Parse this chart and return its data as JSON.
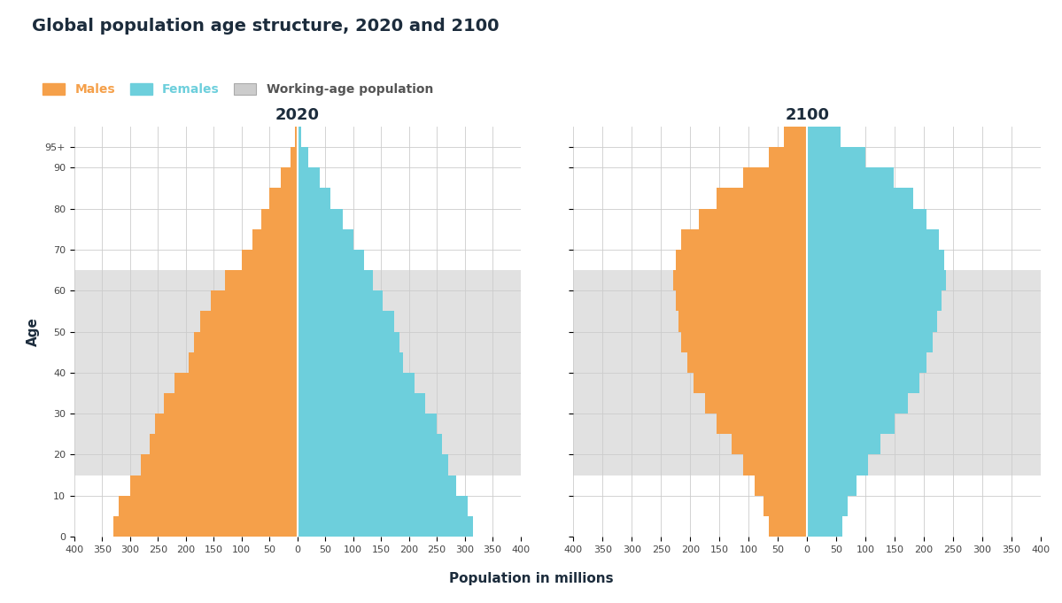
{
  "title": "Global population age structure, 2020 and 2100",
  "legend_items": [
    "Males",
    "Females",
    "Working-age population"
  ],
  "male_color": "#F5A04A",
  "female_color": "#6DCFDC",
  "working_age_color": "#DCDCDC",
  "working_age_alpha": 0.85,
  "xlabel": "Population in millions",
  "ylabel": "Age",
  "xlim": 400,
  "year1": "2020",
  "year2": "2100",
  "working_age_low": 15,
  "working_age_high": 65,
  "age_groups": [
    0,
    5,
    10,
    15,
    20,
    25,
    30,
    35,
    40,
    45,
    50,
    55,
    60,
    65,
    70,
    75,
    80,
    85,
    90,
    95
  ],
  "males_2020": [
    330,
    320,
    300,
    280,
    265,
    255,
    240,
    220,
    195,
    185,
    175,
    155,
    130,
    100,
    80,
    65,
    50,
    30,
    12,
    4
  ],
  "females_2020": [
    315,
    305,
    285,
    270,
    260,
    250,
    230,
    210,
    190,
    183,
    173,
    153,
    135,
    120,
    100,
    82,
    60,
    40,
    20,
    7
  ],
  "males_2100": [
    65,
    75,
    90,
    110,
    130,
    155,
    175,
    195,
    205,
    215,
    220,
    225,
    230,
    225,
    215,
    185,
    155,
    110,
    65,
    40
  ],
  "females_2100": [
    60,
    70,
    85,
    105,
    125,
    150,
    172,
    192,
    205,
    215,
    222,
    230,
    238,
    235,
    225,
    205,
    182,
    148,
    100,
    58
  ],
  "background_color": "#FFFFFF",
  "grid_color": "#CCCCCC",
  "title_color": "#1C2C3C",
  "axis_label_color": "#1C2C3C"
}
